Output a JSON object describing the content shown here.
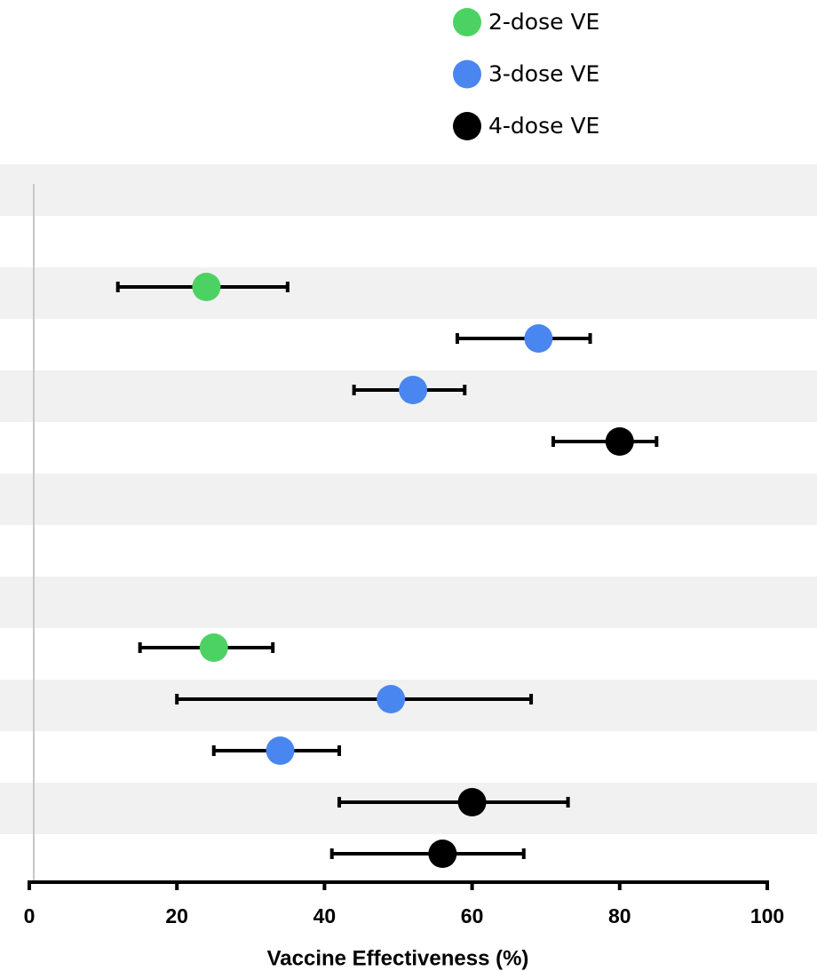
{
  "chart_data": {
    "type": "forest",
    "x_label": "Vaccine Effectiveness (%)",
    "categories": [
      null,
      null,
      null,
      null,
      null,
      null,
      null,
      null,
      null,
      null,
      null,
      null,
      null,
      null
    ],
    "series": [
      {
        "name": "2-dose VE",
        "color": "#4cd263",
        "values": [
          null,
          null,
          24,
          null,
          null,
          null,
          null,
          null,
          null,
          25,
          null,
          null,
          null,
          null
        ],
        "lower": [
          null,
          null,
          12,
          null,
          null,
          null,
          null,
          null,
          null,
          15,
          null,
          null,
          null,
          null
        ],
        "upper": [
          null,
          null,
          35,
          null,
          null,
          null,
          null,
          null,
          null,
          33,
          null,
          null,
          null,
          null
        ]
      },
      {
        "name": "3-dose VE",
        "color": "#4a86f0",
        "values": [
          null,
          null,
          null,
          69,
          52,
          null,
          null,
          null,
          null,
          null,
          49,
          34,
          null,
          null
        ],
        "lower": [
          null,
          null,
          null,
          58,
          44,
          null,
          null,
          null,
          null,
          null,
          20,
          25,
          null,
          null
        ],
        "upper": [
          null,
          null,
          null,
          76,
          59,
          null,
          null,
          null,
          null,
          null,
          68,
          42,
          null,
          null
        ]
      },
      {
        "name": "4-dose VE",
        "color": "#000000",
        "values": [
          null,
          null,
          null,
          null,
          null,
          80,
          null,
          null,
          null,
          null,
          null,
          null,
          60,
          56
        ],
        "lower": [
          null,
          null,
          null,
          null,
          null,
          71,
          null,
          null,
          null,
          null,
          null,
          null,
          42,
          41
        ],
        "upper": [
          null,
          null,
          null,
          null,
          null,
          85,
          null,
          null,
          null,
          null,
          null,
          null,
          73,
          67
        ]
      }
    ],
    "xlim": [
      0,
      100
    ],
    "xticks": [
      0,
      20,
      40,
      60,
      80,
      100
    ]
  }
}
